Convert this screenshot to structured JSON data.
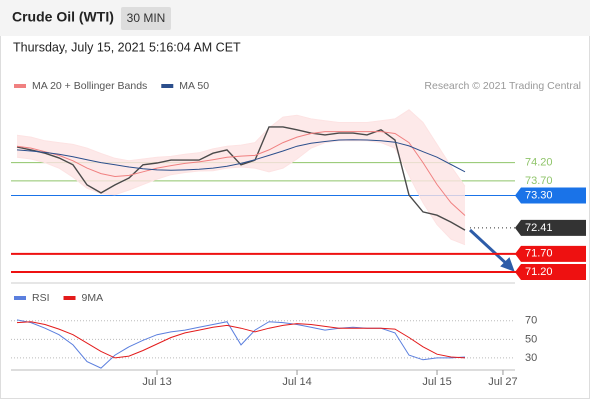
{
  "header": {
    "title": "Crude Oil (WTI)",
    "interval": "30 MIN",
    "timestamp": "Thursday, July 15, 2021 5:16:04 AM CET",
    "source": "Research © 2021 Trading Central"
  },
  "chart_data": [
    {
      "type": "line",
      "x": [
        -1.0,
        -0.9,
        -0.8,
        -0.7,
        -0.6,
        -0.5,
        -0.4,
        -0.3,
        -0.2,
        -0.1,
        0,
        0.1,
        0.2,
        0.3,
        0.4,
        0.5,
        0.6,
        0.7,
        0.8,
        0.9,
        1.0,
        1.1,
        1.2,
        1.3,
        1.4,
        1.5,
        1.6,
        1.7,
        1.8,
        1.9,
        2.0,
        2.1,
        2.2
      ],
      "xlim": [
        -1.043,
        2.557
      ],
      "ylim": [
        70.9,
        76.0
      ],
      "series": [
        {
          "color": "#4a4a4a",
          "values": [
            74.63,
            74.55,
            74.46,
            74.33,
            74.14,
            73.59,
            73.37,
            73.59,
            73.78,
            74.14,
            74.19,
            74.27,
            74.27,
            74.27,
            74.46,
            74.55,
            74.14,
            74.27,
            75.18,
            75.18,
            75.1,
            75.01,
            74.96,
            75.01,
            75.01,
            74.96,
            75.1,
            74.82,
            73.31,
            72.85,
            72.76,
            72.57,
            72.35
          ]
        },
        {
          "name": "MA 20 + Bollinger Bands",
          "color": "#f08080",
          "band_color": "#fde3e3",
          "values": [
            74.65,
            74.6,
            74.5,
            74.4,
            74.25,
            74.05,
            73.9,
            73.82,
            73.85,
            73.95,
            74.05,
            74.12,
            74.18,
            74.22,
            74.28,
            74.35,
            74.38,
            74.4,
            74.55,
            74.75,
            74.9,
            75.0,
            75.05,
            75.05,
            75.05,
            75.05,
            75.05,
            75.0,
            74.75,
            74.2,
            73.6,
            73.1,
            72.75
          ],
          "upper": [
            74.95,
            74.9,
            74.8,
            74.75,
            74.7,
            74.6,
            74.45,
            74.32,
            74.25,
            74.3,
            74.35,
            74.37,
            74.43,
            74.47,
            74.58,
            74.65,
            74.68,
            74.75,
            75.15,
            75.45,
            75.5,
            75.4,
            75.35,
            75.3,
            75.3,
            75.3,
            75.35,
            75.4,
            75.65,
            75.3,
            74.7,
            74.1,
            73.55
          ],
          "lower": [
            74.35,
            74.3,
            74.2,
            74.05,
            73.8,
            73.5,
            73.35,
            73.32,
            73.45,
            73.6,
            73.75,
            73.87,
            73.93,
            73.97,
            73.98,
            74.05,
            74.08,
            74.05,
            73.95,
            74.05,
            74.3,
            74.6,
            74.75,
            74.8,
            74.8,
            74.8,
            74.75,
            74.6,
            73.85,
            73.1,
            72.5,
            72.1,
            71.95
          ]
        },
        {
          "name": "MA 50",
          "color": "#2c4f8c",
          "values": [
            74.55,
            74.52,
            74.48,
            74.43,
            74.36,
            74.28,
            74.2,
            74.14,
            74.08,
            74.03,
            74.0,
            73.99,
            74.0,
            74.02,
            74.05,
            74.1,
            74.18,
            74.28,
            74.4,
            74.52,
            74.65,
            74.73,
            74.78,
            74.82,
            74.83,
            74.82,
            74.8,
            74.76,
            74.66,
            74.5,
            74.35,
            74.15,
            73.95
          ]
        }
      ],
      "levels": [
        {
          "value": 74.2,
          "label": "74.20",
          "color": "#8fc46a",
          "boxed": false,
          "dotted": false
        },
        {
          "value": 73.7,
          "label": "73.70",
          "color": "#8fc46a",
          "boxed": false,
          "dotted": false
        },
        {
          "value": 73.3,
          "label": "73.30",
          "color": "#1a73e8",
          "boxed": true,
          "dotted": false
        },
        {
          "value": 72.41,
          "label": "72.41",
          "color": "#333333",
          "boxed": true,
          "dotted": true
        },
        {
          "value": 71.7,
          "label": "71.70",
          "color": "#ee1111",
          "boxed": true,
          "dotted": false
        },
        {
          "value": 71.2,
          "label": "71.20",
          "color": "#ee1111",
          "boxed": true,
          "dotted": false
        }
      ]
    },
    {
      "type": "line",
      "x": [
        -1.0,
        -0.9,
        -0.8,
        -0.7,
        -0.6,
        -0.5,
        -0.4,
        -0.3,
        -0.2,
        -0.1,
        0,
        0.1,
        0.2,
        0.3,
        0.4,
        0.5,
        0.6,
        0.7,
        0.8,
        0.9,
        1.0,
        1.1,
        1.2,
        1.3,
        1.4,
        1.5,
        1.6,
        1.7,
        1.8,
        1.9,
        2.0,
        2.1,
        2.2
      ],
      "xlim": [
        -1.043,
        2.557
      ],
      "xticks": [
        {
          "value": 0,
          "label": "Jul 13"
        },
        {
          "value": 1,
          "label": "Jul 14"
        },
        {
          "value": 2,
          "label": "Jul 15"
        },
        {
          "value": 2.471,
          "label": "Jul 27"
        }
      ],
      "ylim": [
        17,
        87
      ],
      "yticks": [
        30,
        50,
        70
      ],
      "grid": true,
      "series": [
        {
          "name": "RSI",
          "color": "#5b7fde",
          "values": [
            71,
            68,
            62,
            55,
            44,
            26,
            19,
            33,
            42,
            49,
            55,
            58,
            60,
            63,
            66,
            69,
            44,
            60,
            69,
            68,
            66,
            63,
            60,
            62,
            63,
            62,
            62,
            57,
            33,
            28,
            30,
            30,
            31
          ]
        },
        {
          "name": "9MA",
          "color": "#e31b1b",
          "values": [
            68,
            69,
            66,
            61,
            55,
            46,
            37,
            30,
            32,
            38,
            45,
            52,
            57,
            60,
            63,
            65,
            62,
            58,
            62,
            65,
            67,
            66,
            64,
            62,
            62,
            62,
            62,
            61,
            52,
            42,
            34,
            31,
            30
          ]
        }
      ]
    }
  ]
}
